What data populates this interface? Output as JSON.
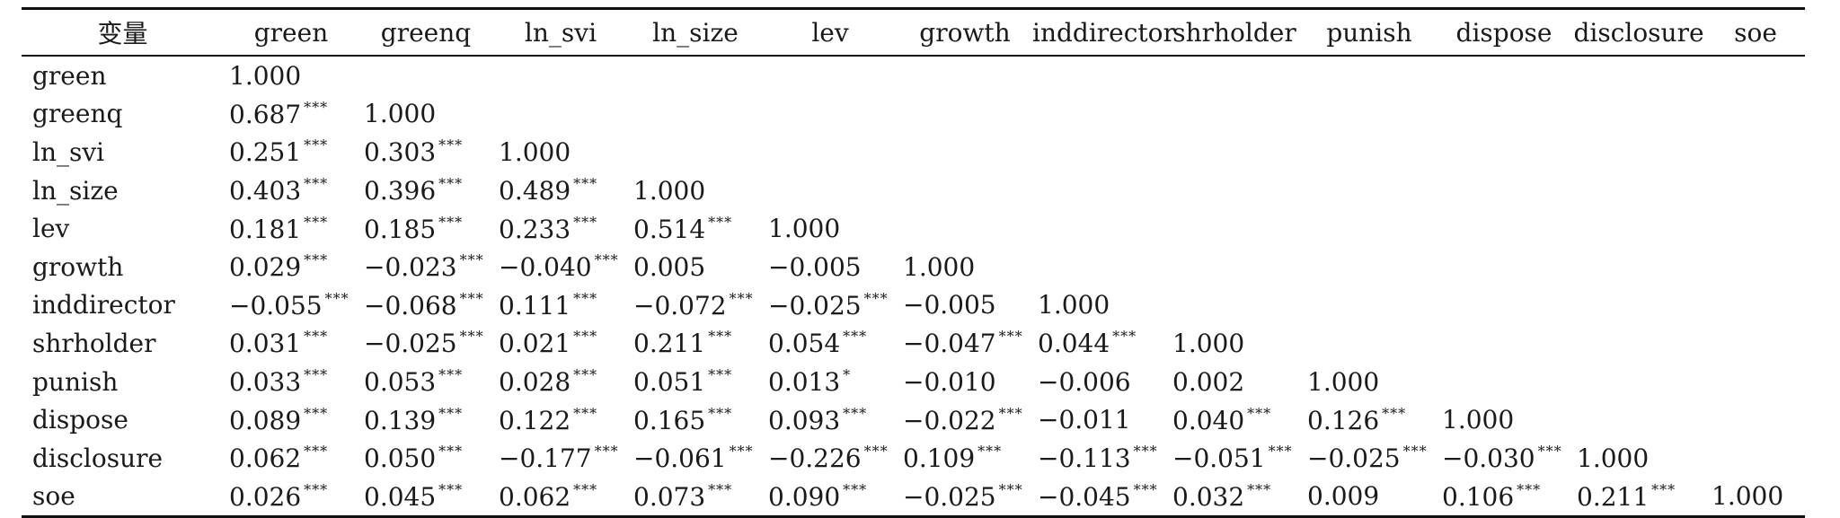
{
  "table": {
    "corner_label": "变量",
    "columns": [
      "green",
      "greenq",
      "ln_svi",
      "ln_size",
      "lev",
      "growth",
      "inddirector",
      "shrholder",
      "punish",
      "dispose",
      "disclosure",
      "soe"
    ],
    "rows": [
      {
        "label": "green",
        "cells": [
          [
            "1.000",
            ""
          ]
        ]
      },
      {
        "label": "greenq",
        "cells": [
          [
            "0.687",
            "***"
          ],
          [
            "1.000",
            ""
          ]
        ]
      },
      {
        "label": "ln_svi",
        "cells": [
          [
            "0.251",
            "***"
          ],
          [
            "0.303",
            "***"
          ],
          [
            "1.000",
            ""
          ]
        ]
      },
      {
        "label": "ln_size",
        "cells": [
          [
            "0.403",
            "***"
          ],
          [
            "0.396",
            "***"
          ],
          [
            "0.489",
            "***"
          ],
          [
            "1.000",
            ""
          ]
        ]
      },
      {
        "label": "lev",
        "cells": [
          [
            "0.181",
            "***"
          ],
          [
            "0.185",
            "***"
          ],
          [
            "0.233",
            "***"
          ],
          [
            "0.514",
            "***"
          ],
          [
            "1.000",
            ""
          ]
        ]
      },
      {
        "label": "growth",
        "cells": [
          [
            "0.029",
            "***"
          ],
          [
            "−0.023",
            "***"
          ],
          [
            "−0.040",
            "***"
          ],
          [
            "0.005",
            ""
          ],
          [
            "−0.005",
            ""
          ],
          [
            "1.000",
            ""
          ]
        ]
      },
      {
        "label": "inddirector",
        "cells": [
          [
            "−0.055",
            "***"
          ],
          [
            "−0.068",
            "***"
          ],
          [
            "0.111",
            "***"
          ],
          [
            "−0.072",
            "***"
          ],
          [
            "−0.025",
            "***"
          ],
          [
            "−0.005",
            ""
          ],
          [
            "1.000",
            ""
          ]
        ]
      },
      {
        "label": "shrholder",
        "cells": [
          [
            "0.031",
            "***"
          ],
          [
            "−0.025",
            "***"
          ],
          [
            "0.021",
            "***"
          ],
          [
            "0.211",
            "***"
          ],
          [
            "0.054",
            "***"
          ],
          [
            "−0.047",
            "***"
          ],
          [
            "0.044",
            "***"
          ],
          [
            "1.000",
            ""
          ]
        ]
      },
      {
        "label": "punish",
        "cells": [
          [
            "0.033",
            "***"
          ],
          [
            "0.053",
            "***"
          ],
          [
            "0.028",
            "***"
          ],
          [
            "0.051",
            "***"
          ],
          [
            "0.013",
            "*"
          ],
          [
            "−0.010",
            ""
          ],
          [
            "−0.006",
            ""
          ],
          [
            "0.002",
            ""
          ],
          [
            "1.000",
            ""
          ]
        ]
      },
      {
        "label": "dispose",
        "cells": [
          [
            "0.089",
            "***"
          ],
          [
            "0.139",
            "***"
          ],
          [
            "0.122",
            "***"
          ],
          [
            "0.165",
            "***"
          ],
          [
            "0.093",
            "***"
          ],
          [
            "−0.022",
            "***"
          ],
          [
            "−0.011",
            ""
          ],
          [
            "0.040",
            "***"
          ],
          [
            "0.126",
            "***"
          ],
          [
            "1.000",
            ""
          ]
        ]
      },
      {
        "label": "disclosure",
        "cells": [
          [
            "0.062",
            "***"
          ],
          [
            "0.050",
            "***"
          ],
          [
            "−0.177",
            "***"
          ],
          [
            "−0.061",
            "***"
          ],
          [
            "−0.226",
            "***"
          ],
          [
            "0.109",
            "***"
          ],
          [
            "−0.113",
            "***"
          ],
          [
            "−0.051",
            "***"
          ],
          [
            "−0.025",
            "***"
          ],
          [
            "−0.030",
            "***"
          ],
          [
            "1.000",
            ""
          ]
        ]
      },
      {
        "label": "soe",
        "cells": [
          [
            "0.026",
            "***"
          ],
          [
            "0.045",
            "***"
          ],
          [
            "0.062",
            "***"
          ],
          [
            "0.073",
            "***"
          ],
          [
            "0.090",
            "***"
          ],
          [
            "−0.025",
            "***"
          ],
          [
            "−0.045",
            "***"
          ],
          [
            "0.032",
            "***"
          ],
          [
            "0.009",
            ""
          ],
          [
            "0.106",
            "***"
          ],
          [
            "0.211",
            "***"
          ],
          [
            "1.000",
            ""
          ]
        ]
      }
    ]
  }
}
